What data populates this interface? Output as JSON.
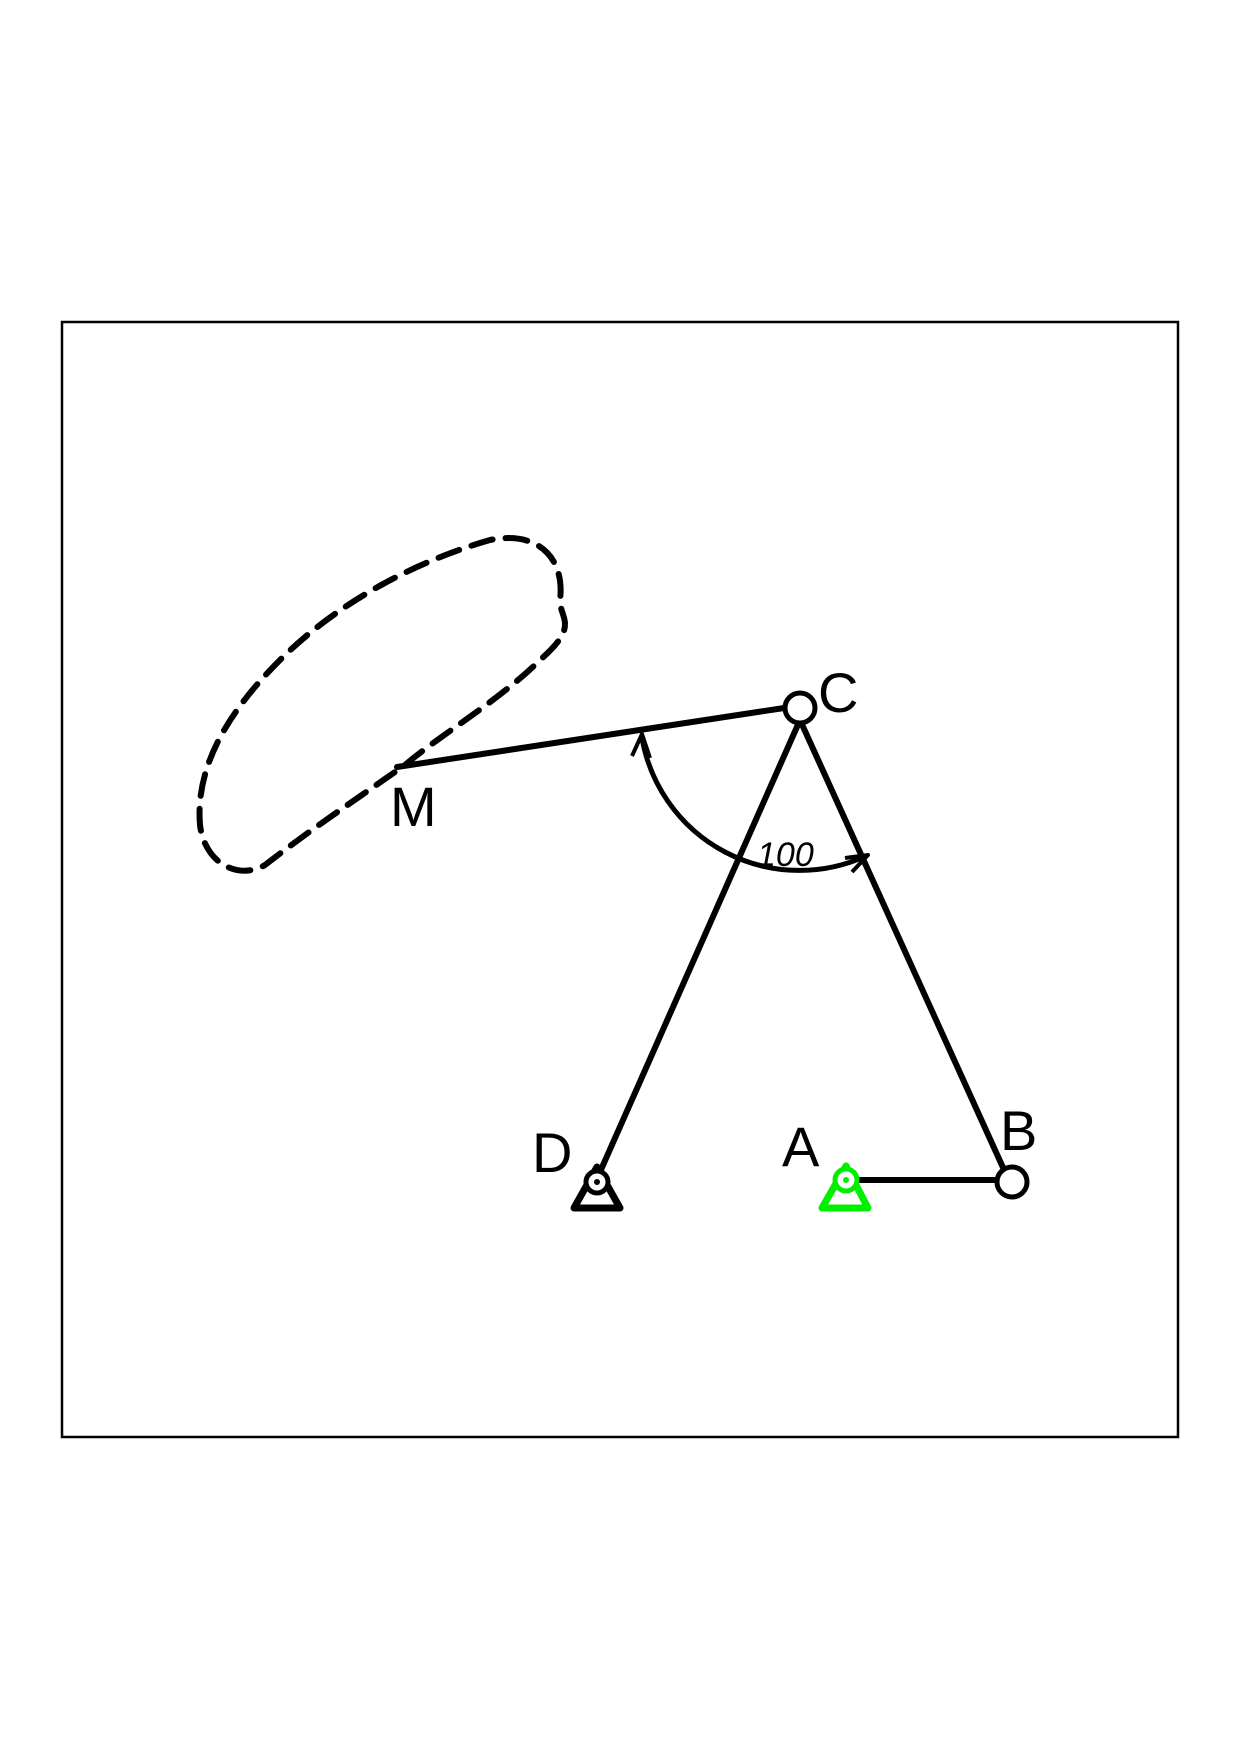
{
  "labels": {
    "a": "A",
    "b": "B",
    "c": "C",
    "d": "D",
    "m": "M"
  },
  "angle": {
    "value": "100"
  },
  "colors": {
    "ink": "#000000",
    "driver_support": "#00ee00"
  }
}
